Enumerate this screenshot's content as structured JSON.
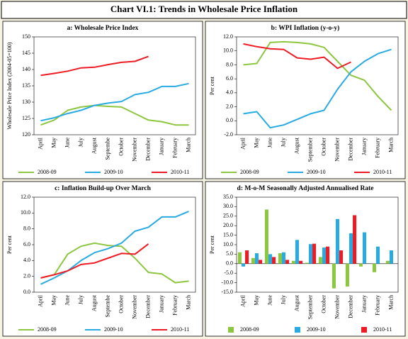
{
  "title": "Chart VI.1: Trends in Wholesale Price Inflation",
  "chart_data": [
    {
      "type": "line",
      "title": "a: Wholesale Price Index",
      "ylabel": "Wholesale Price Index (2004-05=100)",
      "categories": [
        "April",
        "May",
        "June",
        "July",
        "August",
        "Septembe",
        "October",
        "November",
        "December",
        "January",
        "February",
        "March"
      ],
      "ylim": [
        120,
        150
      ],
      "yticks": [
        120,
        125,
        130,
        135,
        140,
        145,
        150
      ],
      "series": [
        {
          "name": "2008-09",
          "color": "#8dc63f",
          "values": [
            123,
            124.5,
            127.5,
            128.5,
            129,
            128.7,
            128.5,
            126.5,
            124.5,
            124,
            123,
            123
          ]
        },
        {
          "name": "2009-10",
          "color": "#29abe2",
          "values": [
            124.3,
            125.2,
            126.5,
            127.5,
            129,
            129.7,
            130.2,
            132.3,
            133,
            134.8,
            134.8,
            135.7
          ]
        },
        {
          "name": "2010-11",
          "color": "#ed1c24",
          "values": [
            138.2,
            138.8,
            139.5,
            140.5,
            140.7,
            141.5,
            142.2,
            142.5,
            144,
            null,
            null,
            null
          ]
        }
      ]
    },
    {
      "type": "line",
      "title": "b: WPI Inflation (y-o-y)",
      "ylabel": "Per cent",
      "categories": [
        "April",
        "May",
        "June",
        "July",
        "August",
        "September",
        "October",
        "November",
        "December",
        "January",
        "February",
        "March"
      ],
      "ylim": [
        -2,
        12
      ],
      "yticks": [
        {
          "value": -2,
          "label": "-2.0"
        },
        {
          "value": 0,
          "label": "0.0"
        },
        {
          "value": 2,
          "label": "2.0"
        },
        {
          "value": 4,
          "label": "4.0"
        },
        {
          "value": 6,
          "label": "6.0"
        },
        {
          "value": 8,
          "label": "8.0"
        },
        {
          "value": 10,
          "label": "10.0"
        },
        {
          "value": 12,
          "label": "12.0"
        }
      ],
      "series": [
        {
          "name": "2008-09",
          "color": "#8dc63f",
          "values": [
            8.0,
            8.2,
            11.2,
            11.3,
            11.2,
            11.0,
            10.5,
            8.5,
            6.5,
            5.8,
            3.5,
            1.5
          ]
        },
        {
          "name": "2009-10",
          "color": "#29abe2",
          "values": [
            1.0,
            1.3,
            -1.0,
            -0.6,
            0.2,
            1.0,
            1.5,
            4.5,
            7.0,
            8.5,
            9.6,
            10.2
          ]
        },
        {
          "name": "2010-11",
          "color": "#ed1c24",
          "values": [
            11.0,
            10.6,
            10.3,
            10.2,
            9.0,
            8.8,
            9.1,
            7.5,
            8.4,
            null,
            null,
            null
          ]
        }
      ]
    },
    {
      "type": "line",
      "title": "c: Inflation Build-up Over March",
      "ylabel": "Per cent",
      "categories": [
        "April",
        "May",
        "June",
        "July",
        "August",
        "Septembe",
        "October",
        "November",
        "December",
        "January",
        "February",
        "March"
      ],
      "ylim": [
        0,
        12
      ],
      "yticks": [
        {
          "value": 0,
          "label": "0.0"
        },
        {
          "value": 2,
          "label": "2.0"
        },
        {
          "value": 4,
          "label": "4.0"
        },
        {
          "value": 6,
          "label": "6.0"
        },
        {
          "value": 8,
          "label": "8.0"
        },
        {
          "value": 10,
          "label": "10.0"
        },
        {
          "value": 12,
          "label": "12.0"
        }
      ],
      "series": [
        {
          "name": "2008-09",
          "color": "#8dc63f",
          "values": [
            1.8,
            2.2,
            4.8,
            5.8,
            6.2,
            5.9,
            5.8,
            4.3,
            2.5,
            2.3,
            1.2,
            1.4
          ]
        },
        {
          "name": "2009-10",
          "color": "#29abe2",
          "values": [
            1.0,
            1.8,
            2.7,
            4.0,
            5.0,
            5.5,
            6.2,
            7.7,
            8.2,
            9.5,
            9.5,
            10.2
          ]
        },
        {
          "name": "2010-11",
          "color": "#ed1c24",
          "values": [
            1.8,
            2.2,
            2.7,
            3.5,
            3.7,
            4.3,
            4.9,
            4.8,
            6.1,
            null,
            null,
            null
          ]
        }
      ]
    },
    {
      "type": "bar",
      "title": "d: M-o-M Seasonally Adjusted Annualised Rate",
      "ylabel": "Per cent",
      "categories": [
        "April",
        "May",
        "June",
        "July",
        "August",
        "September",
        "October",
        "November",
        "December",
        "January",
        "February",
        "March"
      ],
      "ylim": [
        -15,
        35
      ],
      "yticks": [
        {
          "value": -15,
          "label": "-15.0"
        },
        {
          "value": -10,
          "label": "-10.0"
        },
        {
          "value": -5,
          "label": "-5.0"
        },
        {
          "value": 0,
          "label": "0.0"
        },
        {
          "value": 5,
          "label": "5.0"
        },
        {
          "value": 10,
          "label": "10.0"
        },
        {
          "value": 15,
          "label": "15.0"
        },
        {
          "value": 20,
          "label": "20.0"
        },
        {
          "value": 25,
          "label": "25.0"
        },
        {
          "value": 30,
          "label": "30.0"
        },
        {
          "value": 35,
          "label": "35.0"
        }
      ],
      "series": [
        {
          "name": "2008-09",
          "color": "#8dc63f",
          "values": [
            6.0,
            3.0,
            28.5,
            5.5,
            1.5,
            0.5,
            3.5,
            -13,
            -12,
            -1.5,
            -4.5,
            1.5
          ]
        },
        {
          "name": "2009-10",
          "color": "#29abe2",
          "values": [
            -1.5,
            5.5,
            5.0,
            6.0,
            12.5,
            10.3,
            8.5,
            23.5,
            16.0,
            16.5,
            9.0,
            7.0
          ]
        },
        {
          "name": "2010-11",
          "color": "#ed1c24",
          "values": [
            7.0,
            2.0,
            3.5,
            2.0,
            1.5,
            10.5,
            9.0,
            7.0,
            25.5,
            null,
            null,
            null
          ]
        }
      ]
    }
  ]
}
